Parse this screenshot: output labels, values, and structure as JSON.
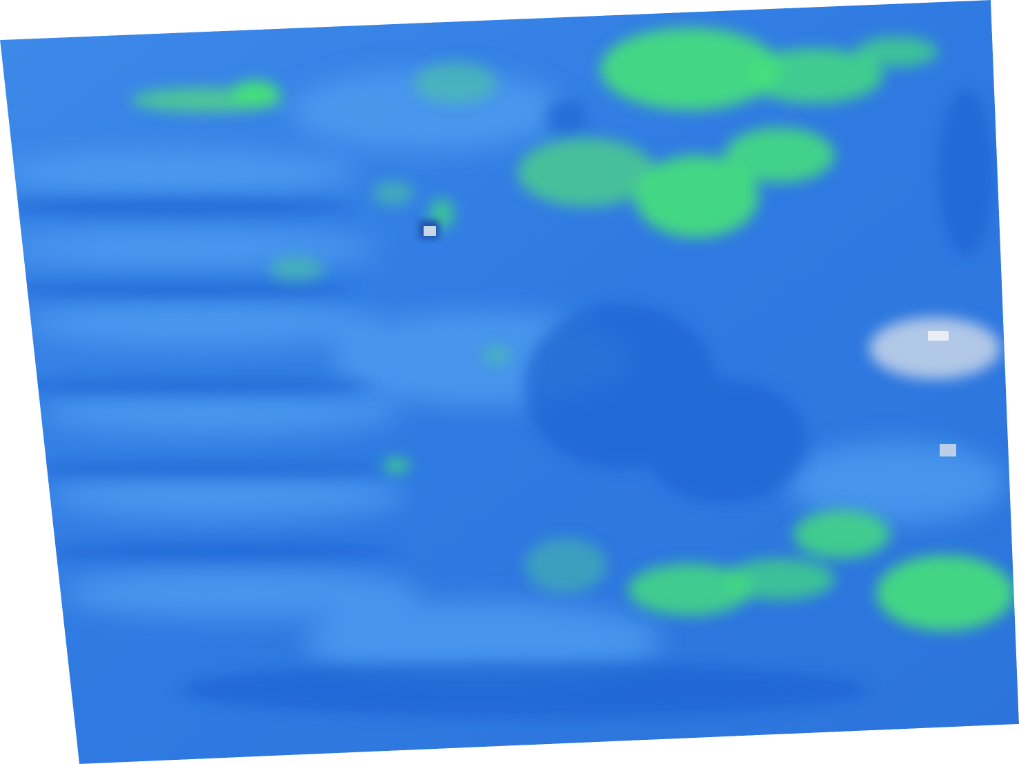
{
  "map": {
    "background_color": "#ffffff",
    "palette": {
      "deep_blue": "#1f66d6",
      "base_blue": "#3a86e8",
      "light_blue": "#4f9ef0",
      "green": "#45e07a",
      "pale": "#d8e2ee"
    },
    "layers": [
      "raster-base",
      "green-patches",
      "dark-streaks",
      "pale-spots"
    ]
  }
}
